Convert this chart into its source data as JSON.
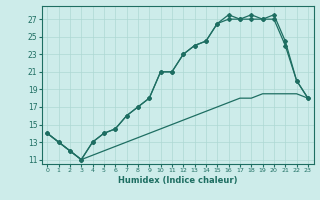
{
  "xlabel": "Humidex (Indice chaleur)",
  "xlim": [
    -0.5,
    23.5
  ],
  "ylim": [
    10.5,
    28.5
  ],
  "xticks": [
    0,
    1,
    2,
    3,
    4,
    5,
    6,
    7,
    8,
    9,
    10,
    11,
    12,
    13,
    14,
    15,
    16,
    17,
    18,
    19,
    20,
    21,
    22,
    23
  ],
  "yticks": [
    11,
    13,
    15,
    17,
    19,
    21,
    23,
    25,
    27
  ],
  "background_color": "#cdecea",
  "grid_color": "#aed8d4",
  "line_color": "#1e6e62",
  "curve1_x": [
    0,
    1,
    2,
    3,
    4,
    5,
    6,
    7,
    8,
    9,
    10,
    11,
    12,
    13,
    14,
    15,
    16,
    17,
    18,
    19,
    20,
    21,
    22,
    23
  ],
  "curve1_y": [
    14,
    13,
    12,
    11,
    13,
    14,
    14.5,
    16,
    17,
    18,
    21,
    21,
    23,
    24,
    24.5,
    26.5,
    27.5,
    27,
    27.5,
    27,
    27.5,
    24.5,
    20,
    18
  ],
  "curve2_x": [
    0,
    1,
    2,
    3,
    4,
    5,
    6,
    7,
    8,
    9,
    10,
    11,
    12,
    13,
    14,
    15,
    16,
    17,
    18,
    19,
    20,
    21,
    22,
    23
  ],
  "curve2_y": [
    14,
    13,
    12,
    11,
    13,
    14,
    14.5,
    16,
    17,
    18,
    21,
    21,
    23,
    24,
    24.5,
    26.5,
    27,
    27,
    27,
    27,
    27,
    24,
    20,
    18
  ],
  "line3_x": [
    0,
    1,
    2,
    3,
    4,
    5,
    6,
    7,
    8,
    9,
    10,
    11,
    12,
    13,
    14,
    15,
    16,
    17,
    18,
    19,
    20,
    21,
    22,
    23
  ],
  "line3_y": [
    14,
    13,
    12,
    11,
    11.5,
    12,
    12.5,
    13,
    13.5,
    14,
    14.5,
    15,
    15.5,
    16,
    16.5,
    17,
    17.5,
    18,
    18,
    18.5,
    18.5,
    18.5,
    18.5,
    18
  ]
}
